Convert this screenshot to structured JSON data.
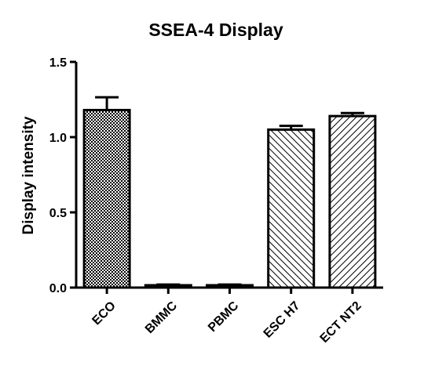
{
  "chart_data": {
    "type": "bar",
    "title": "SSEA-4 Display",
    "xlabel": "",
    "ylabel": "Display intensity",
    "categories": [
      "ECO",
      "BMMC",
      "PBMC",
      "ESC H7",
      "ECT NT2"
    ],
    "values": [
      1.18,
      0.015,
      0.015,
      1.05,
      1.14
    ],
    "errors": [
      0.085,
      0.005,
      0.005,
      0.025,
      0.02
    ],
    "patterns": [
      "checker",
      "checker",
      "checker",
      "hatch-back",
      "hatch-fwd"
    ],
    "ylim": [
      0,
      1.5
    ],
    "yticks": [
      "0.0",
      "0.5",
      "1.0",
      "1.5"
    ],
    "grid": false,
    "bar_color": "#000000",
    "background": "#ffffff"
  }
}
